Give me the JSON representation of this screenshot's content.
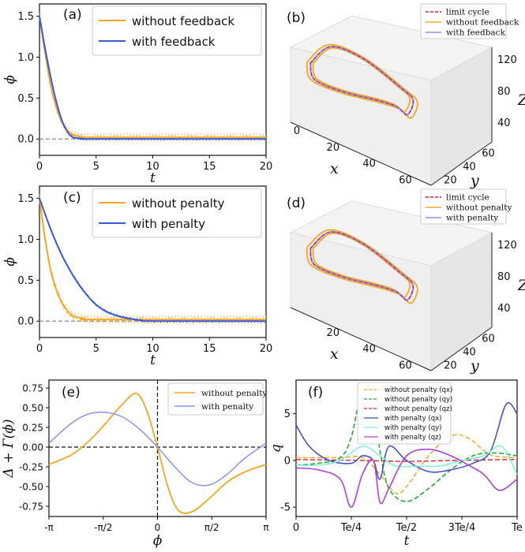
{
  "colors": {
    "orange": "#f5a623",
    "blue": "#3a5bd9",
    "lightblue": "#8c93e8",
    "red": "#e0202a",
    "green": "#27a83a",
    "cyan": "#7ff0d8",
    "magenta": "#b040d8",
    "darkblue": "#3a4cc8"
  },
  "chart_data": [
    {
      "panel": "(a)",
      "type": "line",
      "xlabel": "t",
      "ylabel": "ϕ",
      "xlim": [
        0,
        20
      ],
      "ylim": [
        -0.2,
        1.65
      ],
      "xticks": [
        "0",
        "5",
        "10",
        "15",
        "20"
      ],
      "yticks": [
        "0.0",
        "0.5",
        "1.0",
        "1.5"
      ],
      "legend": [
        "without feedback",
        "with feedback"
      ],
      "series": [
        {
          "name": "without feedback",
          "x": [
            0,
            0.5,
            1,
            1.5,
            2,
            2.5,
            3,
            4,
            5,
            20
          ],
          "y": [
            1.5,
            1.05,
            0.65,
            0.38,
            0.2,
            0.1,
            0.05,
            0.02,
            0.02,
            0.02
          ]
        },
        {
          "name": "with feedback",
          "x": [
            0,
            0.5,
            1,
            1.5,
            2,
            2.5,
            3,
            4,
            5,
            20
          ],
          "y": [
            1.5,
            1.1,
            0.75,
            0.45,
            0.22,
            0.08,
            0.02,
            0.0,
            0.0,
            0.0
          ]
        }
      ]
    },
    {
      "panel": "(b)",
      "type": "line",
      "legend": [
        "limit cycle",
        "without feedback",
        "with feedback"
      ],
      "xlabel": "x",
      "ylabel": "y",
      "zlabel": "Z",
      "xticks": [
        "0",
        "20",
        "40",
        "60"
      ],
      "yticks": [
        "20",
        "40",
        "60"
      ],
      "zticks": [
        "40",
        "80",
        "120"
      ]
    },
    {
      "panel": "(c)",
      "type": "line",
      "xlabel": "t",
      "ylabel": "ϕ",
      "xlim": [
        0,
        20
      ],
      "ylim": [
        -0.2,
        1.65
      ],
      "xticks": [
        "0",
        "5",
        "10",
        "15",
        "20"
      ],
      "yticks": [
        "0.0",
        "0.5",
        "1.0",
        "1.5"
      ],
      "legend": [
        "without penalty",
        "with penalty"
      ],
      "series": [
        {
          "name": "without penalty",
          "x": [
            0,
            0.5,
            1,
            1.5,
            2,
            2.5,
            3,
            4,
            5,
            20
          ],
          "y": [
            1.5,
            1.0,
            0.62,
            0.38,
            0.22,
            0.12,
            0.06,
            0.03,
            0.02,
            0.02
          ]
        },
        {
          "name": "with penalty",
          "x": [
            0,
            1,
            2,
            3,
            4,
            5,
            6,
            7,
            8,
            9,
            10,
            20
          ],
          "y": [
            1.5,
            1.12,
            0.8,
            0.55,
            0.35,
            0.2,
            0.11,
            0.06,
            0.03,
            0.01,
            0.0,
            0.0
          ]
        }
      ]
    },
    {
      "panel": "(d)",
      "type": "line",
      "legend": [
        "limit cycle",
        "without penalty",
        "with penalty"
      ],
      "xlabel": "x",
      "ylabel": "y",
      "zlabel": "Z",
      "xticks": [
        "20",
        "40",
        "60"
      ],
      "yticks": [
        "20",
        "40",
        "60"
      ],
      "zticks": [
        "40",
        "80",
        "120"
      ]
    },
    {
      "panel": "(e)",
      "type": "line",
      "xlabel": "ϕ",
      "ylabel": "Δ + Γ(ϕ)",
      "xlim": [
        -3.1416,
        3.1416
      ],
      "ylim": [
        -0.88,
        0.85
      ],
      "xticks": [
        "-π",
        "-π/2",
        "0",
        "π/2",
        "π"
      ],
      "yticks": [
        "0.75",
        "0.50",
        "0.25",
        "0.00",
        "-0.25",
        "-0.50",
        "-0.75"
      ],
      "legend": [
        "without penalty",
        "with penalty"
      ],
      "series": [
        {
          "name": "without penalty",
          "x": [
            -3.1416,
            -2.5,
            -2.0,
            -1.5,
            -1.0,
            -0.6,
            -0.3,
            0,
            0.3,
            0.6,
            1.0,
            1.5,
            2.0,
            2.5,
            3.1416
          ],
          "y": [
            -0.22,
            -0.1,
            0.07,
            0.3,
            0.55,
            0.68,
            0.45,
            0.0,
            -0.5,
            -0.8,
            -0.82,
            -0.65,
            -0.45,
            -0.32,
            -0.22
          ]
        },
        {
          "name": "with penalty",
          "x": [
            -3.1416,
            -2.5,
            -2.0,
            -1.5,
            -1.0,
            -0.5,
            0,
            0.5,
            1.0,
            1.5,
            2.0,
            2.5,
            3.1416
          ],
          "y": [
            0.05,
            0.3,
            0.42,
            0.44,
            0.38,
            0.22,
            0.0,
            -0.25,
            -0.45,
            -0.48,
            -0.35,
            -0.15,
            0.05
          ]
        }
      ]
    },
    {
      "panel": "(f)",
      "type": "line",
      "xlabel": "t",
      "ylabel": "q",
      "xlim": [
        0,
        1
      ],
      "ylim": [
        -6,
        8.6
      ],
      "xticks": [
        "0",
        "Te/4",
        "Te/2",
        "3Te/4",
        "Te"
      ],
      "yticks": [
        "5",
        "0",
        "-5"
      ],
      "legend": [
        "without penalty (qx)",
        "without penalty (qy)",
        "without penalty (qz)",
        "with penalty (qx)",
        "with penalty (qy)",
        "with penalty (qz)"
      ],
      "series": [
        {
          "name": "without penalty (qx)",
          "x": [
            0,
            0.2,
            0.3,
            0.38,
            0.45,
            0.5,
            0.6,
            0.7,
            0.78,
            0.88,
            1
          ],
          "y": [
            0.3,
            0.3,
            0.3,
            -1.5,
            -3.5,
            -2.8,
            0.5,
            2.6,
            2.4,
            0.6,
            0.3
          ]
        },
        {
          "name": "without penalty (qy)",
          "x": [
            0,
            0.1,
            0.2,
            0.25,
            0.3,
            0.35,
            0.38,
            0.42,
            0.5,
            0.6,
            0.7,
            0.8,
            0.9,
            1
          ],
          "y": [
            -0.5,
            -0.3,
            0.3,
            2.5,
            7.5,
            6.0,
            1.0,
            -3.0,
            -4.4,
            -3.0,
            -1.0,
            0.5,
            0.8,
            0.5
          ]
        },
        {
          "name": "without penalty (qz)",
          "x": [
            0,
            0.3,
            0.5,
            0.7,
            1
          ],
          "y": [
            0.1,
            0.0,
            -0.1,
            0.0,
            0.1
          ]
        },
        {
          "name": "with penalty (qx)",
          "x": [
            0,
            0.06,
            0.15,
            0.25,
            0.3,
            0.35,
            0.38,
            0.42,
            0.5,
            0.6,
            0.7,
            0.8,
            0.88,
            0.95,
            1
          ],
          "y": [
            3.8,
            1.5,
            0.0,
            -0.3,
            0.5,
            0.0,
            -2.0,
            1.5,
            0.0,
            -1.2,
            -1.0,
            -0.3,
            1.0,
            6.0,
            5.0
          ]
        },
        {
          "name": "with penalty (qy)",
          "x": [
            0,
            0.1,
            0.2,
            0.3,
            0.38,
            0.45,
            0.55,
            0.65,
            0.75,
            0.85,
            0.93,
            1
          ],
          "y": [
            -0.5,
            -0.5,
            0.0,
            1.5,
            0.5,
            -0.6,
            -0.6,
            -0.6,
            0.0,
            0.5,
            1.5,
            -1.5
          ]
        },
        {
          "name": "with penalty (qz)",
          "x": [
            0,
            0.1,
            0.2,
            0.25,
            0.3,
            0.35,
            0.38,
            0.42,
            0.5,
            0.6,
            0.7,
            0.78,
            0.85,
            0.92,
            1
          ],
          "y": [
            -0.8,
            -1.0,
            -2.0,
            -5.0,
            -1.5,
            0.0,
            -4.5,
            -3.0,
            0.5,
            1.2,
            0.5,
            -0.5,
            -1.5,
            -3.2,
            -2.0
          ]
        }
      ]
    }
  ]
}
